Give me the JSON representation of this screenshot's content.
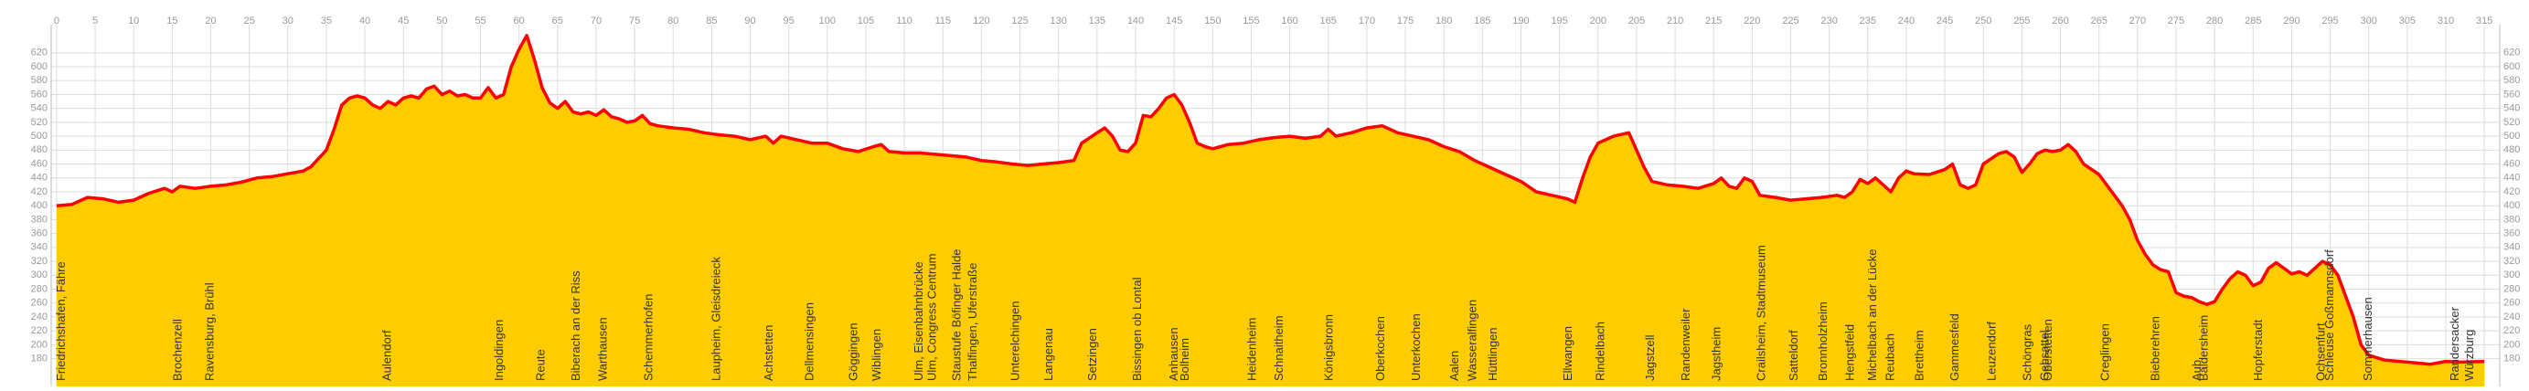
{
  "chart_data": {
    "type": "area",
    "fill_color": "#ffcc00",
    "line_color": "#ff0000",
    "grid": true,
    "xlim": [
      -0.7,
      317
    ],
    "ylim": [
      140,
      650
    ],
    "xticks": [
      0,
      5,
      10,
      15,
      20,
      25,
      30,
      35,
      40,
      45,
      50,
      55,
      60,
      65,
      70,
      75,
      80,
      85,
      90,
      95,
      100,
      105,
      110,
      115,
      120,
      125,
      130,
      135,
      140,
      145,
      150,
      155,
      160,
      165,
      170,
      175,
      180,
      185,
      190,
      195,
      200,
      205,
      210,
      215,
      220,
      225,
      230,
      235,
      240,
      245,
      250,
      255,
      260,
      265,
      270,
      275,
      280,
      285,
      290,
      295,
      300,
      305,
      310,
      315
    ],
    "yticks": [
      180,
      200,
      220,
      240,
      260,
      280,
      300,
      320,
      340,
      360,
      380,
      400,
      420,
      440,
      460,
      480,
      500,
      520,
      540,
      560,
      580,
      600,
      620
    ],
    "x": [
      0,
      2,
      4,
      6,
      8,
      10,
      12,
      14,
      15,
      16,
      18,
      20,
      22,
      24,
      26,
      28,
      30,
      32,
      33,
      35,
      36,
      37,
      38,
      39,
      40,
      41,
      42,
      43,
      44,
      45,
      46,
      47,
      48,
      49,
      50,
      51,
      52,
      53,
      54,
      55,
      56,
      57,
      58,
      59,
      60,
      61,
      62,
      63,
      64,
      65,
      66,
      67,
      68,
      69,
      70,
      71,
      72,
      73,
      74,
      75,
      76,
      77,
      78,
      80,
      82,
      84,
      86,
      88,
      90,
      92,
      93,
      94,
      96,
      98,
      100,
      102,
      104,
      106,
      107,
      108,
      110,
      112,
      114,
      116,
      118,
      120,
      122,
      124,
      126,
      128,
      130,
      132,
      133,
      135,
      136,
      137,
      138,
      139,
      140,
      141,
      142,
      143,
      144,
      145,
      146,
      147,
      148,
      149,
      150,
      152,
      154,
      156,
      158,
      160,
      162,
      164,
      165,
      166,
      168,
      170,
      172,
      174,
      176,
      178,
      180,
      182,
      184,
      186,
      188,
      190,
      192,
      194,
      196,
      197,
      198,
      199,
      200,
      202,
      204,
      205,
      206,
      207,
      209,
      211,
      213,
      215,
      216,
      217,
      218,
      219,
      220,
      221,
      223,
      225,
      227,
      229,
      231,
      232,
      233,
      234,
      235,
      236,
      237,
      238,
      239,
      240,
      241,
      243,
      245,
      246,
      247,
      248,
      249,
      250,
      252,
      253,
      254,
      255,
      256,
      257,
      258,
      259,
      260,
      261,
      262,
      263,
      265,
      266,
      268,
      269,
      270,
      271,
      272,
      273,
      274,
      275,
      276,
      277,
      278,
      279,
      280,
      281,
      282,
      283,
      284,
      285,
      286,
      287,
      288,
      289,
      290,
      291,
      292,
      293,
      294,
      295,
      296,
      297,
      298,
      299,
      300,
      302,
      305,
      308,
      310,
      312,
      315
    ],
    "values": [
      400,
      402,
      412,
      410,
      405,
      408,
      418,
      425,
      420,
      428,
      425,
      428,
      430,
      434,
      440,
      442,
      446,
      450,
      456,
      480,
      510,
      545,
      555,
      558,
      555,
      545,
      540,
      550,
      545,
      555,
      558,
      555,
      568,
      572,
      560,
      565,
      558,
      560,
      555,
      555,
      570,
      555,
      560,
      600,
      625,
      645,
      610,
      570,
      548,
      540,
      550,
      535,
      532,
      535,
      530,
      538,
      528,
      525,
      520,
      522,
      530,
      518,
      515,
      512,
      510,
      505,
      502,
      500,
      495,
      500,
      490,
      500,
      495,
      490,
      490,
      482,
      478,
      485,
      488,
      478,
      476,
      476,
      474,
      472,
      470,
      465,
      463,
      460,
      458,
      460,
      462,
      465,
      490,
      505,
      512,
      500,
      480,
      478,
      490,
      530,
      528,
      540,
      555,
      560,
      545,
      520,
      490,
      485,
      482,
      488,
      490,
      495,
      498,
      500,
      497,
      500,
      510,
      500,
      505,
      512,
      515,
      505,
      500,
      495,
      485,
      478,
      465,
      455,
      445,
      435,
      420,
      415,
      410,
      405,
      440,
      470,
      490,
      500,
      505,
      480,
      455,
      435,
      430,
      428,
      425,
      432,
      440,
      428,
      425,
      440,
      435,
      415,
      412,
      408,
      410,
      412,
      415,
      412,
      420,
      438,
      432,
      440,
      430,
      420,
      440,
      450,
      446,
      445,
      452,
      460,
      430,
      425,
      430,
      460,
      475,
      478,
      470,
      448,
      460,
      475,
      480,
      478,
      480,
      488,
      478,
      460,
      445,
      430,
      400,
      380,
      350,
      330,
      315,
      308,
      305,
      275,
      270,
      268,
      262,
      258,
      262,
      280,
      295,
      305,
      300,
      285,
      290,
      310,
      318,
      310,
      302,
      305,
      300,
      310,
      320,
      315,
      300,
      270,
      240,
      200,
      185,
      178,
      175,
      172,
      176,
      175,
      176
    ],
    "annotations": [
      {
        "text": "Friedrichshafen, Fähre",
        "x": 0.2
      },
      {
        "text": "Brochenzell",
        "x": 15.3
      },
      {
        "text": "Ravensburg, Brühl",
        "x": 19.5
      },
      {
        "text": "Aulendorf",
        "x": 42.5
      },
      {
        "text": "Ingoldingen",
        "x": 57
      },
      {
        "text": "Reute",
        "x": 62.4
      },
      {
        "text": "Biberach an der Riss",
        "x": 67
      },
      {
        "text": "Warthausen",
        "x": 70.5
      },
      {
        "text": "Schemmerhofen",
        "x": 76.4
      },
      {
        "text": "Laupheim, Gleisdreieck",
        "x": 85.2
      },
      {
        "text": "Achstetten",
        "x": 92
      },
      {
        "text": "Dellmensingen",
        "x": 97.3
      },
      {
        "text": "Göggingen",
        "x": 103
      },
      {
        "text": "Wiblingen",
        "x": 106
      },
      {
        "text": "Ulm, Eisenbahnbrücke",
        "x": 111.5
      },
      {
        "text": "Ulm, Congress Centrum",
        "x": 113.2
      },
      {
        "text": "Staustufe Böfinger Halde",
        "x": 116.4
      },
      {
        "text": "Thalfingen, Uferstraße",
        "x": 118.5
      },
      {
        "text": "Unterelchingen",
        "x": 124
      },
      {
        "text": "Langenau",
        "x": 128.3
      },
      {
        "text": "Setzingen",
        "x": 134
      },
      {
        "text": "Bissingen ob Lontal",
        "x": 139.8
      },
      {
        "text": "Anhausen",
        "x": 144.6
      },
      {
        "text": "Bolheim",
        "x": 146
      },
      {
        "text": "Heidenheim",
        "x": 154.7
      },
      {
        "text": "Schnaitheim",
        "x": 158.2
      },
      {
        "text": "Königsbronn",
        "x": 164.7
      },
      {
        "text": "Oberkochen",
        "x": 171.4
      },
      {
        "text": "Unterkochen",
        "x": 176
      },
      {
        "text": "Aalen",
        "x": 181
      },
      {
        "text": "Wasseralfingen",
        "x": 183.3
      },
      {
        "text": "Hüttlingen",
        "x": 186
      },
      {
        "text": "Ellwangen",
        "x": 195.7
      },
      {
        "text": "Rindelbach",
        "x": 199.9
      },
      {
        "text": "Jagstzell",
        "x": 206.4
      },
      {
        "text": "Randenweiler",
        "x": 211
      },
      {
        "text": "Jagstheim",
        "x": 215
      },
      {
        "text": "Crailsheim, Stadtmuseum",
        "x": 220.8
      },
      {
        "text": "Satteldorf",
        "x": 225
      },
      {
        "text": "Bronnholzheim",
        "x": 228.8
      },
      {
        "text": "Hengstfeld",
        "x": 232.3
      },
      {
        "text": "Michelbach an der Lücke",
        "x": 235.2
      },
      {
        "text": "Reubach",
        "x": 237.5
      },
      {
        "text": "Brettheim",
        "x": 241.3
      },
      {
        "text": "Gammesfeld",
        "x": 245.9
      },
      {
        "text": "Leuzendorf",
        "x": 250.7
      },
      {
        "text": "Schöngras",
        "x": 255.3
      },
      {
        "text": "Gebsattel",
        "x": 257.6
      },
      {
        "text": "Oberstetten",
        "x": 258
      },
      {
        "text": "Creglingen",
        "x": 265.4
      },
      {
        "text": "Bieberehren",
        "x": 271.9
      },
      {
        "text": "Aub",
        "x": 277.3
      },
      {
        "text": "Baldersheim",
        "x": 278.2
      },
      {
        "text": "Hopferstadt",
        "x": 285.3
      },
      {
        "text": "Ochsenfurt",
        "x": 293.4
      },
      {
        "text": "Schleuse Goßmannsdorf",
        "x": 294.5
      },
      {
        "text": "Sommerhausen",
        "x": 299.5
      },
      {
        "text": "Randersacker",
        "x": 310.8
      },
      {
        "text": "Würzburg",
        "x": 312.7
      }
    ]
  }
}
